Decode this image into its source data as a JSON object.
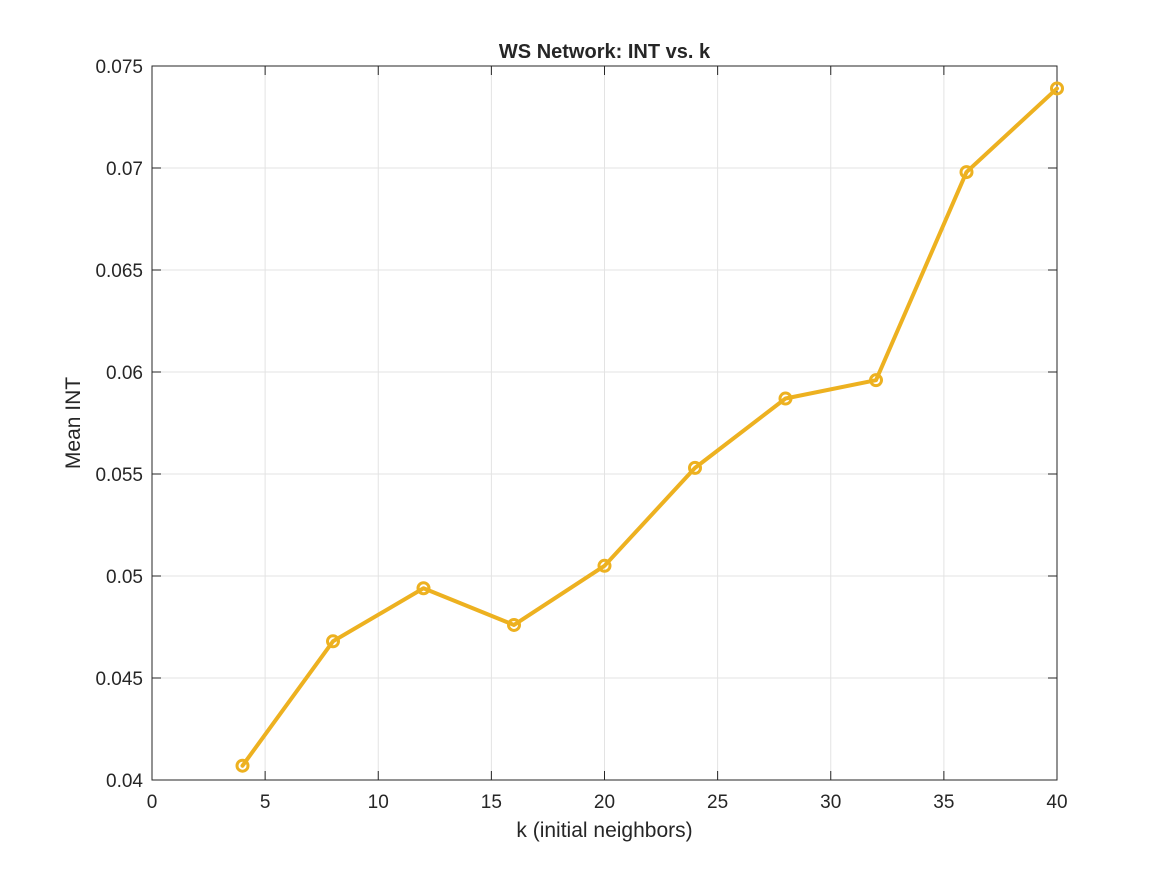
{
  "chart_data": {
    "type": "line",
    "title": "WS Network: INT vs. k",
    "xlabel": "k (initial neighbors)",
    "ylabel": "Mean INT",
    "xlim": [
      0,
      40
    ],
    "ylim": [
      0.04,
      0.075
    ],
    "xticks": [
      0,
      5,
      10,
      15,
      20,
      25,
      30,
      35,
      40
    ],
    "xtick_labels": [
      "0",
      "5",
      "10",
      "15",
      "20",
      "25",
      "30",
      "35",
      "40"
    ],
    "yticks": [
      0.04,
      0.045,
      0.05,
      0.055,
      0.06,
      0.065,
      0.07,
      0.075
    ],
    "ytick_labels": [
      "0.04",
      "0.045",
      "0.05",
      "0.055",
      "0.06",
      "0.065",
      "0.07",
      "0.075"
    ],
    "grid": true,
    "legend": "none",
    "series": [
      {
        "x": [
          4,
          8,
          12,
          16,
          20,
          24,
          28,
          32,
          36,
          40
        ],
        "values": [
          0.0407,
          0.0468,
          0.0494,
          0.0476,
          0.0505,
          0.0553,
          0.0587,
          0.0596,
          0.0698,
          0.0739
        ],
        "color": "#EDB120",
        "marker": "circle"
      }
    ]
  }
}
